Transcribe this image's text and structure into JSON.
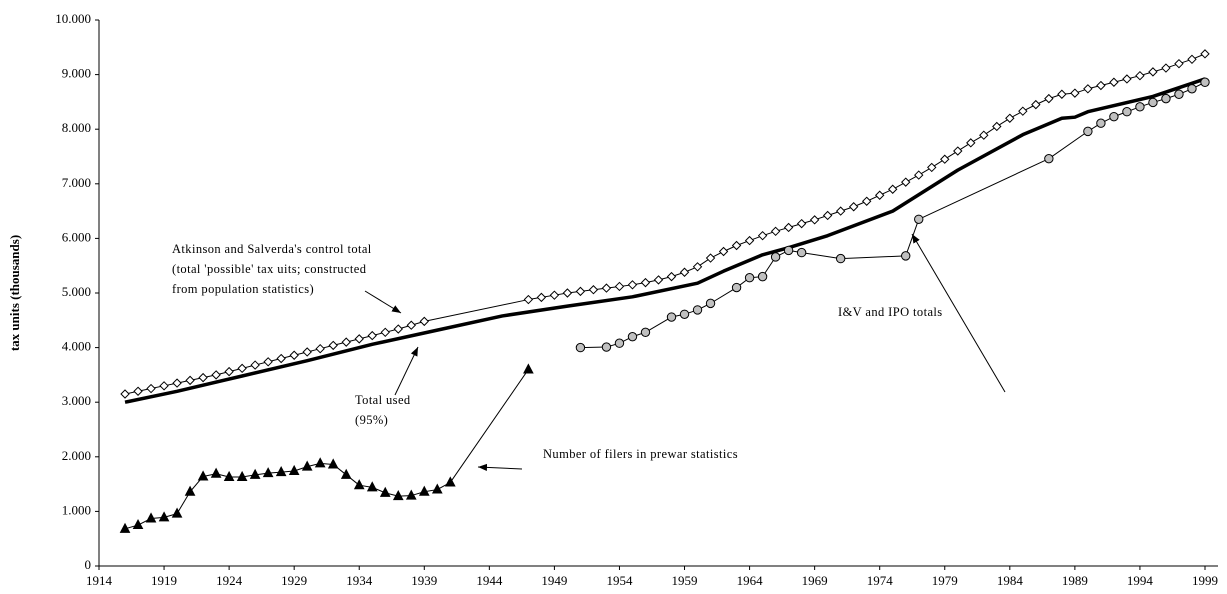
{
  "chart_data": {
    "type": "line",
    "ylabel": "tax units (thousands)",
    "xlim": [
      1914,
      2000
    ],
    "xticks": [
      1914,
      1919,
      1924,
      1929,
      1934,
      1939,
      1944,
      1949,
      1954,
      1959,
      1964,
      1969,
      1974,
      1979,
      1984,
      1989,
      1994,
      1999
    ],
    "ylim": [
      0,
      10000
    ],
    "yticks": [
      0,
      {
        "value": 1000,
        "label": "1.000"
      },
      {
        "value": 2000,
        "label": "2.000"
      },
      {
        "value": 3000,
        "label": "3.000"
      },
      {
        "value": 4000,
        "label": "4.000"
      },
      {
        "value": 5000,
        "label": "5.000"
      },
      {
        "value": 6000,
        "label": "6.000"
      },
      {
        "value": 7000,
        "label": "7.000"
      },
      {
        "value": 8000,
        "label": "8.000"
      },
      {
        "value": 9000,
        "label": "9.000"
      },
      {
        "value": 10000,
        "label": "10.000"
      }
    ],
    "grid": false,
    "series": [
      {
        "color": "#000000",
        "marker": "diamond",
        "marker_fill": "#ffffff",
        "line_width": 1,
        "x": [
          1916,
          1917,
          1918,
          1919,
          1920,
          1921,
          1922,
          1923,
          1924,
          1925,
          1926,
          1927,
          1928,
          1929,
          1930,
          1931,
          1932,
          1933,
          1934,
          1935,
          1936,
          1937,
          1938,
          1939,
          1947,
          1948,
          1949,
          1950,
          1951,
          1952,
          1953,
          1954,
          1955,
          1956,
          1957,
          1958,
          1959,
          1960,
          1961,
          1962,
          1963,
          1964,
          1965,
          1966,
          1967,
          1968,
          1969,
          1970,
          1971,
          1972,
          1973,
          1974,
          1975,
          1976,
          1977,
          1978,
          1979,
          1980,
          1981,
          1982,
          1983,
          1984,
          1985,
          1986,
          1987,
          1988,
          1989,
          1990,
          1991,
          1992,
          1993,
          1994,
          1995,
          1996,
          1997,
          1998,
          1999
        ],
        "values": [
          3150,
          3200,
          3250,
          3300,
          3350,
          3400,
          3450,
          3500,
          3560,
          3620,
          3680,
          3740,
          3800,
          3860,
          3920,
          3980,
          4040,
          4100,
          4160,
          4220,
          4280,
          4340,
          4410,
          4480,
          4880,
          4920,
          4960,
          5000,
          5030,
          5060,
          5090,
          5120,
          5150,
          5190,
          5240,
          5300,
          5380,
          5480,
          5640,
          5760,
          5870,
          5960,
          6050,
          6130,
          6200,
          6270,
          6340,
          6420,
          6500,
          6580,
          6680,
          6790,
          6900,
          7030,
          7160,
          7300,
          7450,
          7600,
          7750,
          7890,
          8050,
          8200,
          8330,
          8450,
          8560,
          8640,
          8660,
          8740,
          8800,
          8860,
          8920,
          8980,
          9050,
          9120,
          9200,
          9280,
          9380
        ]
      },
      {
        "color": "#000000",
        "marker": "none",
        "line_width": 3.5,
        "x": [
          1916,
          1920,
          1925,
          1930,
          1935,
          1940,
          1945,
          1950,
          1955,
          1960,
          1962,
          1965,
          1967,
          1970,
          1975,
          1980,
          1985,
          1988,
          1989,
          1990,
          1995,
          1999
        ],
        "values": [
          3000,
          3200,
          3480,
          3760,
          4060,
          4320,
          4580,
          4760,
          4930,
          5180,
          5400,
          5700,
          5830,
          6050,
          6500,
          7250,
          7900,
          8200,
          8220,
          8320,
          8600,
          8920
        ]
      },
      {
        "color": "#000000",
        "marker": "triangle",
        "marker_fill": "#000000",
        "line_width": 1,
        "x": [
          1916,
          1917,
          1918,
          1919,
          1920,
          1921,
          1922,
          1923,
          1924,
          1925,
          1926,
          1927,
          1928,
          1929,
          1930,
          1931,
          1932,
          1933,
          1934,
          1935,
          1936,
          1937,
          1938,
          1939,
          1940,
          1941,
          1947
        ],
        "values": [
          680,
          750,
          870,
          890,
          960,
          1360,
          1640,
          1690,
          1630,
          1630,
          1670,
          1700,
          1720,
          1740,
          1820,
          1880,
          1860,
          1670,
          1480,
          1440,
          1340,
          1280,
          1290,
          1360,
          1400,
          1530,
          3600
        ]
      },
      {
        "color": "#000000",
        "marker": "circle",
        "marker_fill": "#c0c0c0",
        "line_width": 1,
        "x": [
          1951,
          1953,
          1954,
          1955,
          1956,
          1958,
          1959,
          1960,
          1961,
          1963,
          1964,
          1965,
          1966,
          1967,
          1968,
          1971,
          1976,
          1977,
          1987,
          1990,
          1991,
          1992,
          1993,
          1994,
          1995,
          1996,
          1997,
          1998,
          1999
        ],
        "values": [
          4000,
          4010,
          4080,
          4200,
          4280,
          4560,
          4610,
          4690,
          4810,
          5100,
          5280,
          5300,
          5660,
          5780,
          5740,
          5630,
          5680,
          6350,
          7460,
          7960,
          8110,
          8230,
          8320,
          8410,
          8490,
          8560,
          8640,
          8740,
          8860
        ]
      }
    ],
    "annotations": [
      [
        "Atkinson and Salverda's control total",
        "(total 'possible' tax uits; constructed",
        "from population statistics)"
      ],
      [
        "Total used",
        "(95%)"
      ],
      [
        "I&V and IPO totals"
      ],
      [
        "Number of filers in prewar statistics"
      ]
    ]
  }
}
